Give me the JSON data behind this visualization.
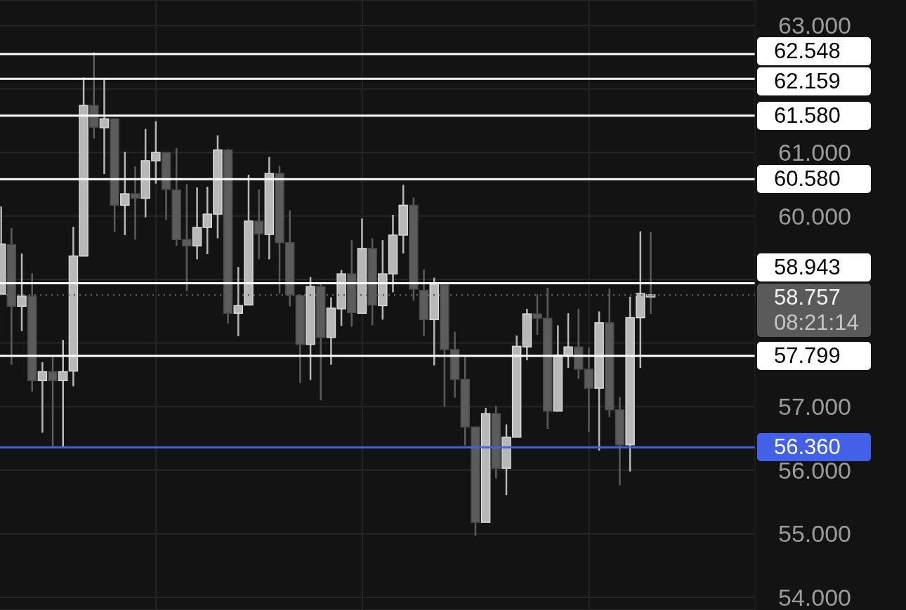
{
  "chart_data": {
    "type": "candlestick",
    "categories": [
      null,
      null,
      null,
      null,
      null,
      null,
      null,
      null,
      null,
      null,
      null,
      null,
      null,
      null,
      null,
      null,
      null,
      null,
      null,
      null,
      null,
      null,
      null,
      null,
      null,
      null,
      null,
      null,
      null,
      null,
      null,
      null,
      null,
      null,
      null,
      null,
      null,
      null,
      null,
      null,
      null,
      null,
      null,
      null,
      null,
      null,
      null,
      null,
      null,
      null,
      null,
      null,
      null,
      null,
      null,
      null,
      null,
      null,
      null,
      null,
      null,
      null,
      null,
      null
    ],
    "ohlc": [
      [
        58.77,
        60.15,
        58.76,
        59.56
      ],
      [
        59.55,
        59.81,
        57.66,
        58.58
      ],
      [
        58.58,
        59.41,
        58.19,
        58.74
      ],
      [
        58.74,
        59.1,
        57.24,
        57.41
      ],
      [
        57.41,
        57.7,
        56.59,
        57.55
      ],
      [
        57.55,
        57.78,
        56.35,
        57.41
      ],
      [
        57.41,
        58.05,
        56.35,
        57.55
      ],
      [
        57.56,
        59.83,
        57.32,
        59.37
      ],
      [
        59.37,
        62.18,
        59.37,
        61.74
      ],
      [
        61.74,
        62.58,
        61.22,
        61.4
      ],
      [
        61.39,
        62.15,
        60.66,
        61.53
      ],
      [
        61.53,
        61.53,
        59.75,
        60.17
      ],
      [
        60.17,
        61.01,
        59.7,
        60.35
      ],
      [
        60.35,
        60.78,
        59.63,
        60.28
      ],
      [
        60.28,
        61.37,
        59.98,
        60.87
      ],
      [
        60.87,
        61.49,
        60.51,
        61.0
      ],
      [
        61.0,
        61.0,
        59.94,
        60.42
      ],
      [
        60.41,
        61.07,
        59.53,
        59.63
      ],
      [
        59.63,
        60.5,
        58.82,
        59.53
      ],
      [
        59.53,
        60.45,
        59.32,
        59.82
      ],
      [
        59.82,
        60.46,
        59.4,
        60.03
      ],
      [
        60.03,
        61.27,
        59.65,
        61.04
      ],
      [
        61.04,
        61.06,
        58.31,
        58.47
      ],
      [
        58.47,
        59.2,
        58.11,
        58.59
      ],
      [
        58.6,
        60.65,
        58.6,
        59.92
      ],
      [
        59.92,
        60.42,
        59.32,
        59.72
      ],
      [
        59.71,
        60.93,
        59.32,
        60.67
      ],
      [
        60.67,
        60.79,
        58.78,
        59.58
      ],
      [
        59.58,
        60.09,
        58.58,
        58.76
      ],
      [
        58.75,
        58.75,
        57.37,
        57.98
      ],
      [
        57.98,
        59.04,
        57.42,
        58.89
      ],
      [
        58.89,
        58.93,
        57.1,
        58.09
      ],
      [
        58.09,
        58.72,
        57.66,
        58.55
      ],
      [
        58.54,
        59.15,
        58.27,
        59.09
      ],
      [
        59.09,
        59.62,
        58.26,
        58.48
      ],
      [
        58.47,
        59.96,
        58.47,
        59.49
      ],
      [
        59.49,
        59.65,
        58.28,
        58.6
      ],
      [
        58.59,
        59.62,
        58.37,
        59.09
      ],
      [
        59.09,
        60.02,
        58.8,
        59.7
      ],
      [
        59.7,
        60.49,
        59.41,
        60.17
      ],
      [
        60.17,
        60.29,
        58.67,
        58.85
      ],
      [
        58.83,
        59.16,
        58.11,
        58.37
      ],
      [
        58.37,
        59.03,
        57.65,
        58.93
      ],
      [
        58.92,
        58.92,
        57.0,
        57.9
      ],
      [
        57.9,
        58.18,
        57.14,
        57.43
      ],
      [
        57.43,
        57.79,
        56.39,
        56.68
      ],
      [
        56.68,
        56.68,
        54.97,
        55.18
      ],
      [
        55.18,
        56.98,
        55.18,
        56.89
      ],
      [
        56.89,
        57.01,
        55.87,
        56.03
      ],
      [
        56.03,
        56.72,
        55.61,
        56.52
      ],
      [
        56.52,
        58.12,
        56.52,
        57.95
      ],
      [
        57.94,
        58.54,
        57.73,
        58.46
      ],
      [
        58.46,
        58.77,
        58.13,
        58.39
      ],
      [
        58.39,
        58.87,
        56.65,
        56.93
      ],
      [
        56.93,
        58.28,
        56.93,
        57.81
      ],
      [
        57.81,
        58.47,
        57.61,
        57.94
      ],
      [
        57.94,
        58.54,
        57.44,
        57.59
      ],
      [
        57.59,
        57.93,
        56.6,
        57.29
      ],
      [
        57.29,
        58.5,
        56.31,
        58.32
      ],
      [
        58.32,
        58.86,
        56.84,
        56.95
      ],
      [
        56.95,
        57.15,
        55.76,
        56.4
      ],
      [
        56.4,
        58.73,
        55.98,
        58.4
      ],
      [
        58.4,
        59.76,
        57.61,
        58.78
      ],
      [
        58.76,
        59.75,
        58.46,
        58.76
      ]
    ],
    "colors": [
      "#b8b8b8",
      "#5c5c5c",
      "#b8b8b8",
      "#5c5c5c",
      "#b8b8b8",
      "#5c5c5c",
      "#b8b8b8",
      "#b8b8b8",
      "#b8b8b8",
      "#5c5c5c",
      "#b8b8b8",
      "#5c5c5c",
      "#b8b8b8",
      "#5c5c5c",
      "#b8b8b8",
      "#b8b8b8",
      "#5c5c5c",
      "#5c5c5c",
      "#5c5c5c",
      "#b8b8b8",
      "#b8b8b8",
      "#b8b8b8",
      "#5c5c5c",
      "#b8b8b8",
      "#b8b8b8",
      "#5c5c5c",
      "#b8b8b8",
      "#5c5c5c",
      "#5c5c5c",
      "#5c5c5c",
      "#b8b8b8",
      "#5c5c5c",
      "#b8b8b8",
      "#b8b8b8",
      "#5c5c5c",
      "#b8b8b8",
      "#5c5c5c",
      "#b8b8b8",
      "#b8b8b8",
      "#b8b8b8",
      "#5c5c5c",
      "#5c5c5c",
      "#b8b8b8",
      "#5c5c5c",
      "#5c5c5c",
      "#5c5c5c",
      "#5c5c5c",
      "#b8b8b8",
      "#5c5c5c",
      "#b8b8b8",
      "#b8b8b8",
      "#b8b8b8",
      "#5c5c5c",
      "#5c5c5c",
      "#b8b8b8",
      "#b8b8b8",
      "#5c5c5c",
      "#5c5c5c",
      "#b8b8b8",
      "#5c5c5c",
      "#5c5c5c",
      "#b8b8b8",
      "#b8b8b8",
      "#5c5c5c"
    ],
    "ylim": [
      53.8,
      63.4
    ],
    "yticks": [
      {
        "value": 54,
        "label": "54.000"
      },
      {
        "value": 55,
        "label": "55.000"
      },
      {
        "value": 56,
        "label": "56.000"
      },
      {
        "value": 57,
        "label": "57.000"
      },
      {
        "value": 58,
        "label": null
      },
      {
        "value": 59,
        "label": null
      },
      {
        "value": 60,
        "label": "60.000"
      },
      {
        "value": 61,
        "label": "61.000"
      },
      {
        "value": 62,
        "label": null
      },
      {
        "value": 63,
        "label": "63.000"
      }
    ],
    "ref_lines": [
      {
        "axis": "y",
        "value": 62.548,
        "label": "62.548",
        "color": "#ffffff",
        "line_style": "solid"
      },
      {
        "axis": "y",
        "value": 62.159,
        "label": "62.159",
        "color": "#ffffff",
        "line_style": "solid"
      },
      {
        "axis": "y",
        "value": 61.58,
        "label": "61.580",
        "color": "#ffffff",
        "line_style": "solid"
      },
      {
        "axis": "y",
        "value": 60.58,
        "label": "60.580",
        "color": "#ffffff",
        "line_style": "solid"
      },
      {
        "axis": "y",
        "value": 58.943,
        "label": "58.943",
        "color": "#ffffff",
        "line_style": "solid"
      },
      {
        "axis": "y",
        "value": 58.757,
        "label": "58.757\n08:21:14",
        "color": "#5e5e5e",
        "line_style": "dotted"
      },
      {
        "axis": "y",
        "value": 57.799,
        "label": "57.799",
        "color": "#ffffff",
        "line_style": "solid"
      },
      {
        "axis": "y",
        "value": 56.36,
        "label": "56.360",
        "color": "#4361e8",
        "line_style": "solid"
      }
    ],
    "grid": true,
    "tick_labels": "y"
  }
}
